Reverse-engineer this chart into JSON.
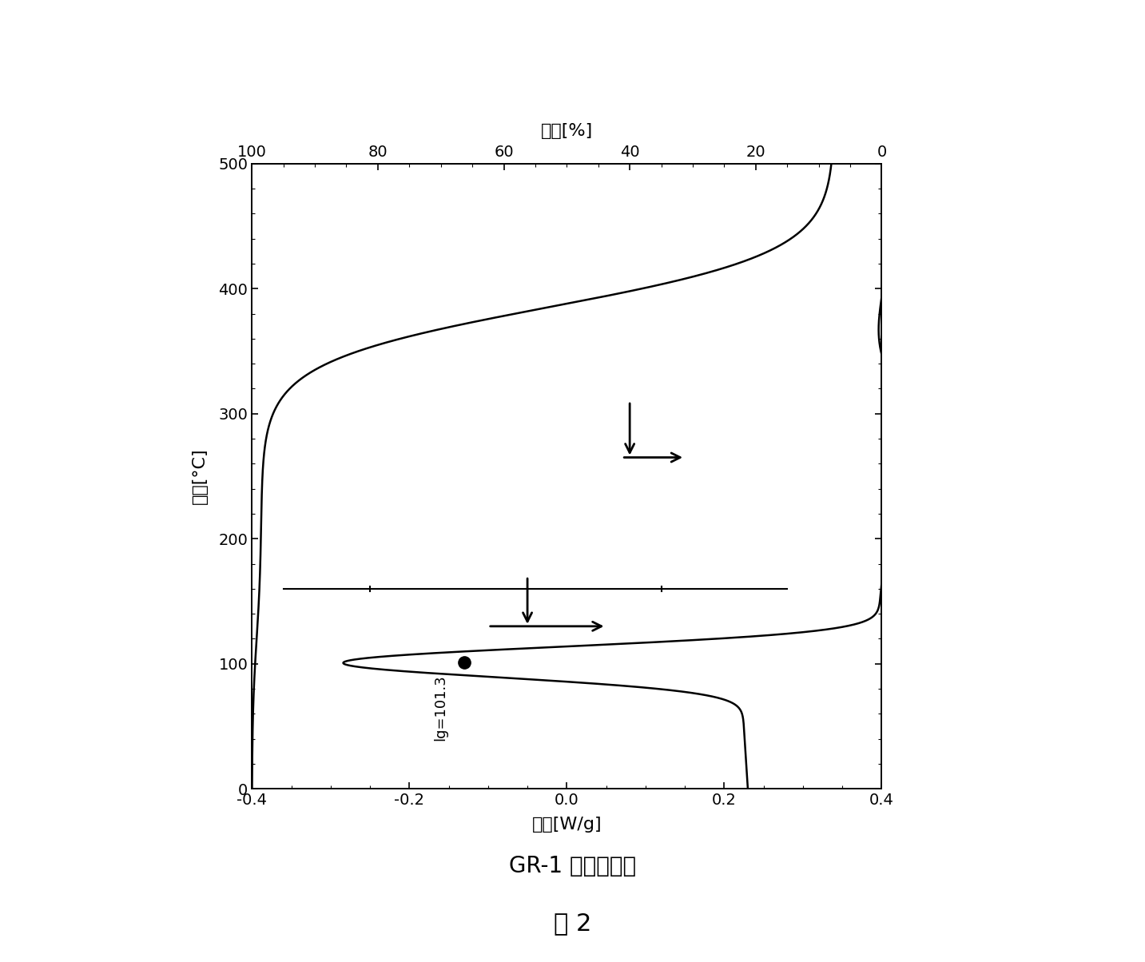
{
  "ylabel_temp": "温度[°C]",
  "xlabel_heat": "热流[W/g]",
  "xlabel_weight": "重量[%]",
  "temp_lim": [
    0,
    500
  ],
  "heat_lim": [
    -0.4,
    0.4
  ],
  "weight_lim": [
    0,
    100
  ],
  "temp_ticks": [
    0,
    100,
    200,
    300,
    400,
    500
  ],
  "heat_ticks": [
    -0.4,
    -0.2,
    0.0,
    0.2,
    0.4
  ],
  "weight_ticks": [
    0,
    20,
    40,
    60,
    80,
    100
  ],
  "annotation_text": "lg=101.3",
  "tg_temp": 101.3,
  "line_color": "#000000",
  "subtitle": "GR-1 的热学性质",
  "fig_label": "图 2",
  "subtitle_fontsize": 20,
  "figlabel_fontsize": 22
}
